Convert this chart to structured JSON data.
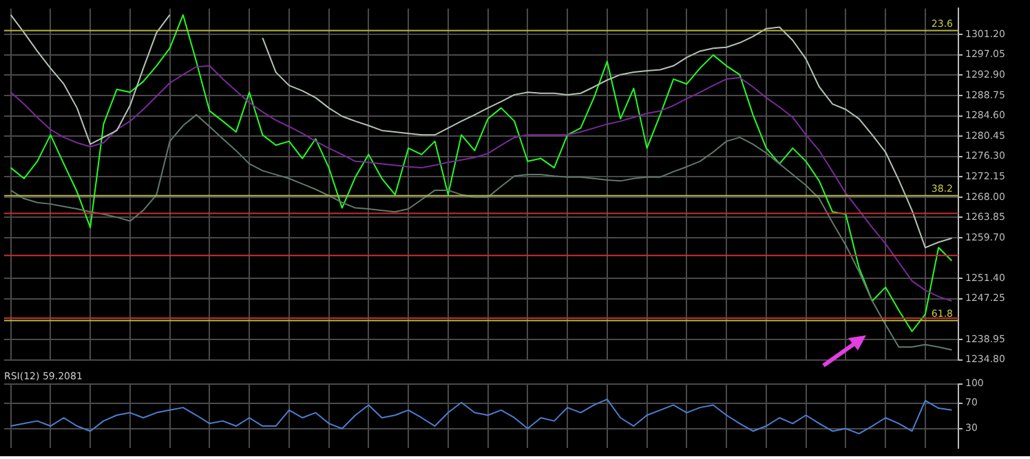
{
  "chart_data": [
    {
      "type": "line",
      "categories": [
        null,
        null,
        null,
        null,
        null,
        null,
        null,
        null,
        null,
        null,
        null,
        null,
        null,
        null,
        null,
        null,
        null,
        null,
        null,
        null,
        null,
        null,
        null,
        null,
        null,
        null,
        null,
        null,
        null,
        null,
        null,
        null,
        null,
        null,
        null,
        null,
        null,
        null,
        null,
        null,
        null,
        null,
        null,
        null,
        null,
        null,
        null,
        null,
        null,
        null,
        null,
        null,
        null,
        null,
        null,
        null,
        null,
        null,
        null,
        null,
        null,
        null,
        null,
        null,
        null,
        null,
        null,
        null,
        null,
        null,
        null,
        null
      ],
      "series": [
        {
          "color": "#b4c4b4",
          "values": [
            1305.2,
            1301.6,
            1297.8,
            1294.3,
            1291.1,
            1286.2,
            1278.8,
            1280.2,
            1281.6,
            1286.7,
            1294.3,
            1301.6,
            1305.2,
            null,
            null,
            null,
            null,
            null,
            null,
            1300.5,
            1293.5,
            1290.8,
            1289.7,
            1288.3,
            1286.2,
            1284.5,
            1283.5,
            1282.6,
            1281.6,
            1281.3,
            1281.0,
            1280.7,
            1280.7,
            1282.1,
            1283.5,
            1284.8,
            1286.2,
            1287.5,
            1288.9,
            1289.4,
            1289.2,
            1289.2,
            1288.9,
            1289.2,
            1290.5,
            1291.9,
            1293.0,
            1293.5,
            1293.8,
            1294.0,
            1294.8,
            1296.5,
            1297.8,
            1298.4,
            1298.6,
            1299.5,
            1300.8,
            1302.4,
            1302.7,
            1300.0,
            1296.2,
            1290.5,
            1287.0,
            1285.9,
            1284.0,
            1280.7,
            1277.2,
            1271.5,
            1265.3,
            1257.7,
            1258.8,
            1259.6
          ]
        },
        {
          "color": "#5f7a6a",
          "values": [
            1269.4,
            1267.7,
            1266.9,
            1266.6,
            1266.1,
            1265.6,
            1265.0,
            1264.5,
            1263.9,
            1263.1,
            1265.3,
            1268.5,
            1279.4,
            1282.6,
            1284.8,
            1282.4,
            1279.9,
            1277.5,
            1274.8,
            1273.4,
            1272.6,
            1271.8,
            1270.7,
            1269.6,
            1268.3,
            1266.9,
            1265.8,
            1265.6,
            1265.3,
            1265.0,
            1265.6,
            1267.5,
            1269.4,
            1269.4,
            1268.5,
            1268.0,
            1268.0,
            1270.2,
            1272.3,
            1272.6,
            1272.6,
            1272.3,
            1272.1,
            1272.1,
            1271.8,
            1271.5,
            1271.3,
            1271.8,
            1272.1,
            1272.1,
            1273.2,
            1274.2,
            1275.3,
            1277.2,
            1279.4,
            1280.2,
            1278.8,
            1277.0,
            1274.8,
            1272.6,
            1270.4,
            1267.7,
            1262.8,
            1258.2,
            1252.8,
            1246.8,
            1242.0,
            1237.4,
            1237.4,
            1237.9,
            1237.4,
            1236.8
          ]
        },
        {
          "color": "#7a2a9a",
          "values": [
            1289.4,
            1287.0,
            1284.3,
            1281.8,
            1280.2,
            1279.1,
            1278.3,
            1279.1,
            1281.8,
            1283.5,
            1285.9,
            1288.6,
            1291.3,
            1293.0,
            1294.6,
            1294.8,
            1292.1,
            1289.7,
            1287.3,
            1285.4,
            1283.7,
            1282.4,
            1281.0,
            1279.4,
            1278.0,
            1276.7,
            1275.3,
            1275.1,
            1274.8,
            1274.5,
            1274.2,
            1274.0,
            1274.5,
            1275.1,
            1275.6,
            1276.1,
            1276.9,
            1278.6,
            1280.2,
            1280.7,
            1280.7,
            1280.7,
            1280.7,
            1281.3,
            1282.1,
            1282.9,
            1283.5,
            1284.3,
            1285.1,
            1285.6,
            1286.7,
            1288.1,
            1289.4,
            1290.8,
            1292.1,
            1292.4,
            1290.5,
            1288.3,
            1286.4,
            1284.3,
            1280.7,
            1277.5,
            1273.2,
            1268.8,
            1265.3,
            1261.8,
            1258.5,
            1254.7,
            1250.9,
            1249.0,
            1247.7,
            1246.8
          ]
        },
        {
          "color": "#22ff22",
          "values": [
            1274.0,
            1271.8,
            1275.3,
            1280.7,
            1274.8,
            1269.1,
            1261.8,
            1282.9,
            1290.0,
            1289.4,
            1291.6,
            1294.8,
            1298.4,
            1305.2,
            1295.7,
            1285.6,
            1283.5,
            1281.3,
            1289.4,
            1280.7,
            1278.6,
            1279.4,
            1275.9,
            1279.9,
            1274.0,
            1265.8,
            1272.1,
            1276.7,
            1271.8,
            1268.5,
            1278.0,
            1276.7,
            1279.4,
            1268.5,
            1280.7,
            1277.5,
            1284.0,
            1286.2,
            1283.5,
            1275.3,
            1275.9,
            1274.0,
            1280.7,
            1282.1,
            1288.3,
            1295.7,
            1284.0,
            1290.2,
            1278.0,
            1284.8,
            1292.1,
            1291.1,
            1294.3,
            1297.0,
            1294.8,
            1293.0,
            1284.8,
            1278.0,
            1274.8,
            1278.0,
            1275.3,
            1271.3,
            1265.0,
            1264.5,
            1253.6,
            1246.8,
            1249.6,
            1244.9,
            1240.6,
            1244.1,
            1257.7,
            1255.0
          ]
        }
      ],
      "ylim": [
        1234.8,
        1306.5
      ],
      "yticks": [
        {
          "value": 1234.8,
          "label": "1234.80"
        },
        {
          "value": 1238.95,
          "label": "1238.95"
        },
        {
          "value": 1247.25,
          "label": "1247.25"
        },
        {
          "value": 1251.4,
          "label": "1251.40"
        },
        {
          "value": 1259.7,
          "label": "1259.70"
        },
        {
          "value": 1263.85,
          "label": "1263.85"
        },
        {
          "value": 1268,
          "label": "1268.00"
        },
        {
          "value": 1272.15,
          "label": "1272.15"
        },
        {
          "value": 1276.3,
          "label": "1276.30"
        },
        {
          "value": 1280.45,
          "label": "1280.45"
        },
        {
          "value": 1284.6,
          "label": "1284.60"
        },
        {
          "value": 1288.75,
          "label": "1288.75"
        },
        {
          "value": 1292.9,
          "label": "1292.90"
        },
        {
          "value": 1297.05,
          "label": "1297.05"
        },
        {
          "value": 1301.2,
          "label": "1301.20"
        }
      ],
      "annotations": [
        {
          "text": "23.6",
          "y": 1302.0
        },
        {
          "text": "38.2",
          "y": 1268.3
        },
        {
          "text": "61.8",
          "y": 1242.8
        }
      ],
      "ref_lines": [
        {
          "axis": "y",
          "value": 1302.0,
          "color": "#b8b840"
        },
        {
          "axis": "y",
          "value": 1268.3,
          "color": "#b8b840"
        },
        {
          "axis": "y",
          "value": 1242.8,
          "color": "#b8b840"
        },
        {
          "axis": "y",
          "value": 1264.7,
          "color": "#c83030"
        },
        {
          "axis": "y",
          "value": 1256.1,
          "color": "#c83030"
        },
        {
          "axis": "y",
          "value": 1243.3,
          "color": "#c83030"
        }
      ],
      "grid": true,
      "line_style": "solid"
    },
    {
      "type": "line",
      "title": "RSI(12) 59.2081",
      "categories": [
        null,
        null,
        null,
        null,
        null,
        null,
        null,
        null,
        null,
        null,
        null,
        null,
        null,
        null,
        null,
        null,
        null,
        null,
        null,
        null,
        null,
        null,
        null,
        null,
        null,
        null,
        null,
        null,
        null,
        null,
        null,
        null,
        null,
        null,
        null,
        null,
        null,
        null,
        null,
        null,
        null,
        null,
        null,
        null,
        null,
        null,
        null,
        null,
        null,
        null,
        null,
        null,
        null,
        null,
        null,
        null,
        null,
        null,
        null,
        null,
        null,
        null,
        null,
        null,
        null,
        null,
        null,
        null,
        null,
        null,
        null,
        null
      ],
      "series": [
        {
          "color": "#4a7fd0",
          "values": [
            34,
            38,
            42,
            34,
            47,
            34,
            26,
            42,
            51,
            55,
            47,
            55,
            59,
            63,
            51,
            38,
            42,
            34,
            47,
            34,
            34,
            59,
            47,
            55,
            38,
            30,
            51,
            67,
            47,
            51,
            59,
            47,
            34,
            55,
            71,
            55,
            51,
            59,
            47,
            30,
            47,
            42,
            63,
            55,
            67,
            76,
            47,
            34,
            51,
            59,
            67,
            55,
            63,
            67,
            51,
            38,
            26,
            34,
            47,
            38,
            51,
            38,
            26,
            30,
            22,
            34,
            47,
            38,
            26,
            74,
            62,
            59
          ]
        }
      ],
      "ylim": [
        0,
        100
      ],
      "yticks": [
        30,
        70,
        100
      ],
      "grid": true,
      "line_style": "solid"
    }
  ]
}
